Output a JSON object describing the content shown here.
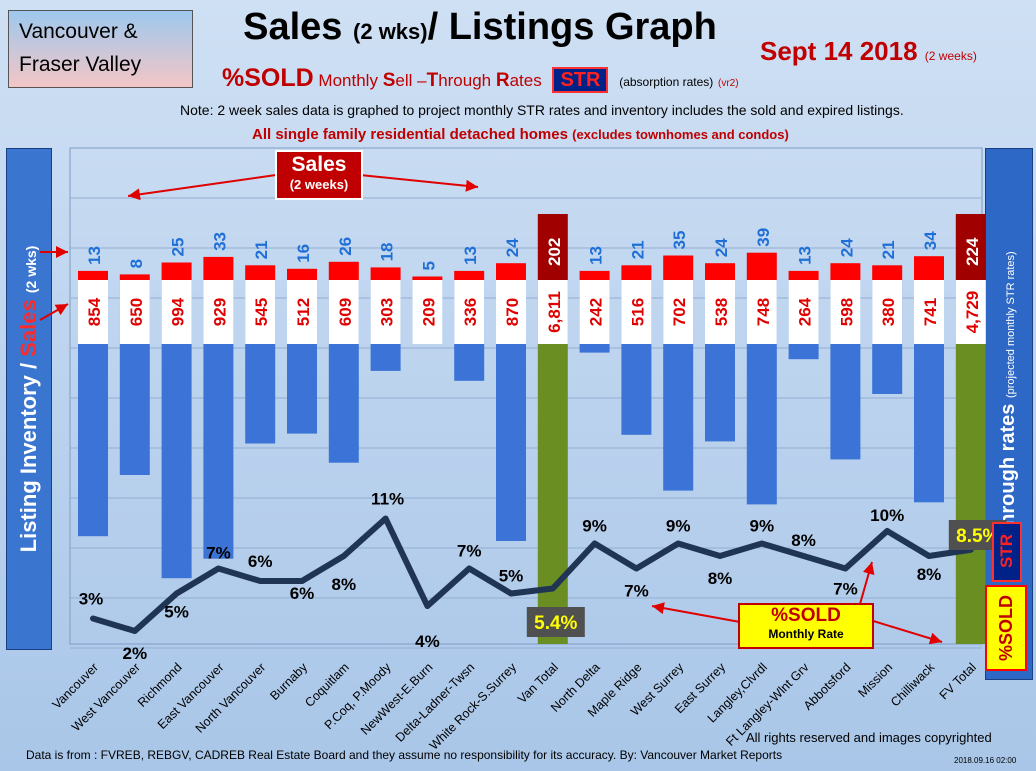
{
  "region": [
    "Vancouver &",
    "Fraser Valley"
  ],
  "title": {
    "main": "Sales",
    "small": "(2 wks)",
    "rest": "/ Listings Graph"
  },
  "date": {
    "main": "Sept 14 2018",
    "small": "(2 weeks)"
  },
  "subtitle": {
    "sold": "%SOLD",
    "monthly": "Monthly",
    "s": "S",
    "ell": "ell",
    "t": "T",
    "hrough": "hrough",
    "r": "R",
    "ates": "ates",
    "str": "STR",
    "absorption": "(absorption rates)",
    "version": "(vr2)"
  },
  "note": "Note: 2 week sales data is graphed to project monthly STR rates and inventory includes the sold and expired listings.",
  "note2": {
    "main": "All single family residential detached homes",
    "small": "(excludes townhomes and condos)"
  },
  "left_axis": {
    "part1": "Listing Inventory /",
    "part2": "Sales",
    "part3": "(2 wks)"
  },
  "right_axis": {
    "main": "Sell-through rates",
    "small": "(projected monthly STR rates)"
  },
  "sales_callout": {
    "title": "Sales",
    "sub": "(2 weeks)"
  },
  "sold_callout": {
    "title": "%SOLD",
    "sub": "Monthly Rate"
  },
  "str_badge": "STR",
  "sold_badge": "%SOLD",
  "footer": "Data is from : FVREB, REBGV, CADREB Real Estate Board and they assume no responsibility for its accuracy. By: Vancouver Market Reports",
  "rights": "All rights reserved and  images copyrighted",
  "stamp": "2018.09.16 02:00",
  "colors": {
    "inventory": "#3b74d6",
    "sales": "#ff0000",
    "total_inventory": "#6b8e23",
    "total_sales": "#a00000",
    "line": "#1f3553",
    "line_peak": "#7a2030",
    "value_sales": "#1f6fd6",
    "value_inventory": "#e00000"
  },
  "chart_data": {
    "type": "bar",
    "categories": [
      "Vancouver",
      "West Vancouver",
      "Richmond",
      "East Vancouver",
      "North Vancouver",
      "Burnaby",
      "Coquitlam",
      "P.Coq, P.Moody",
      "NewWest-E.Burn",
      "Delta-Ladner-Twsn",
      "White Rock-S.Surrey",
      "Van Total",
      "North Delta",
      "Maple Ridge",
      "West Surrey",
      "East Surrey",
      "Langley,Clvrdl",
      "Ft Langley-Wlnt Grv",
      "Abbotsford",
      "Mission",
      "Chilliwack",
      "FV Total"
    ],
    "series": [
      {
        "name": "Sales",
        "values": [
          13,
          8,
          25,
          33,
          21,
          16,
          26,
          18,
          5,
          13,
          24,
          202,
          13,
          21,
          35,
          24,
          39,
          13,
          24,
          21,
          34,
          224
        ]
      },
      {
        "name": "Listing Inventory",
        "values": [
          854,
          650,
          994,
          929,
          545,
          512,
          609,
          303,
          209,
          336,
          870,
          6811,
          242,
          516,
          702,
          538,
          748,
          264,
          598,
          380,
          741,
          4729
        ]
      },
      {
        "name": "%SOLD",
        "values": [
          3,
          2,
          5,
          7,
          6,
          6,
          8,
          11,
          4,
          7,
          5,
          5.4,
          9,
          7,
          9,
          8,
          9,
          8,
          7,
          10,
          8,
          8.5
        ]
      }
    ],
    "labels": {
      "sales": [
        "13",
        "8",
        "25",
        "33",
        "21",
        "16",
        "26",
        "18",
        "5",
        "13",
        "24",
        "202",
        "13",
        "21",
        "35",
        "24",
        "39",
        "13",
        "24",
        "21",
        "34",
        "224"
      ],
      "inventory": [
        "854",
        "650",
        "994",
        "929",
        "545",
        "512",
        "609",
        "303",
        "209",
        "336",
        "870",
        "6,811",
        "242",
        "516",
        "702",
        "538",
        "748",
        "264",
        "598",
        "380",
        "741",
        "4,729"
      ],
      "sold": [
        "3%",
        "2%",
        "5%",
        "7%",
        "6%",
        "6%",
        "8%",
        "11%",
        "4%",
        "7%",
        "5%",
        "5.4%",
        "9%",
        "7%",
        "9%",
        "8%",
        "9%",
        "8%",
        "7%",
        "10%",
        "8%",
        "8.5%"
      ]
    },
    "totals": [
      "Van Total",
      "FV Total"
    ],
    "ylabel": "Listing Inventory / Sales (2 wks)",
    "y2label": "Sell-through rates (projected monthly STR rates)"
  }
}
